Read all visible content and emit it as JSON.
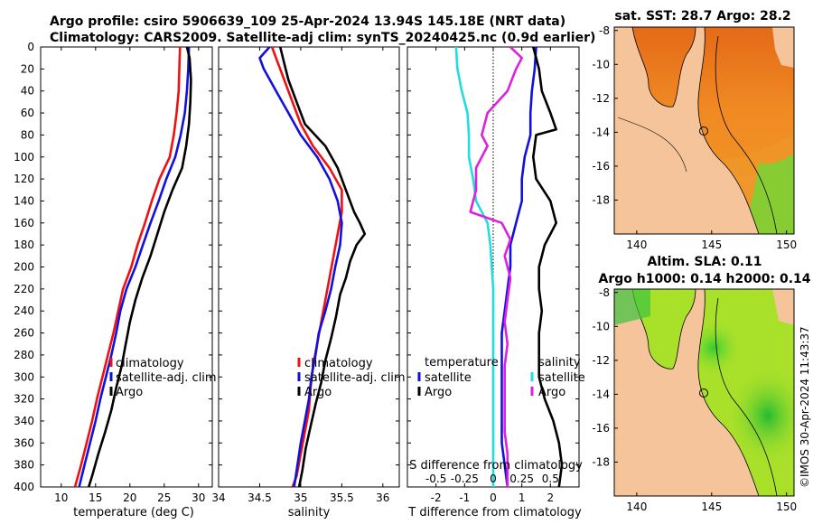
{
  "title": {
    "line1": "Argo profile: csiro 5906639_109 25-Apr-2024 13.94S 145.18E (NRT data)",
    "line2": "Climatology: CARS2009. Satellite-adj clim: synTS_20240425.nc (0.9d earlier)"
  },
  "credit": "©IMOS 30-Apr-2024 11:43:37",
  "colors": {
    "climatology": "#ee1111",
    "satellite": "#1111dd",
    "argo": "#000000",
    "cyan": "#22dddd",
    "magenta": "#dd22dd"
  },
  "chart_data": [
    {
      "id": "temperature",
      "type": "line",
      "xlabel": "temperature (deg C)",
      "xlim": [
        7,
        32
      ],
      "xticks": [
        10,
        15,
        20,
        25,
        30
      ],
      "ylim": [
        0,
        400
      ],
      "yticks": [
        0,
        20,
        40,
        60,
        80,
        100,
        120,
        140,
        160,
        180,
        200,
        220,
        240,
        260,
        280,
        300,
        320,
        340,
        360,
        380,
        400
      ],
      "legend": [
        "climatology",
        "satellite-adj. clim",
        "Argo"
      ],
      "series": [
        {
          "name": "climatology",
          "color_key": "climatology",
          "points": [
            [
              27.3,
              0
            ],
            [
              27.2,
              20
            ],
            [
              27.1,
              40
            ],
            [
              26.8,
              60
            ],
            [
              26.4,
              80
            ],
            [
              25.8,
              100
            ],
            [
              24.3,
              120
            ],
            [
              23.2,
              140
            ],
            [
              22.2,
              160
            ],
            [
              21.1,
              180
            ],
            [
              20.2,
              200
            ],
            [
              19.0,
              220
            ],
            [
              18.3,
              240
            ],
            [
              17.6,
              260
            ],
            [
              16.8,
              280
            ],
            [
              16.0,
              300
            ],
            [
              15.2,
              320
            ],
            [
              14.5,
              340
            ],
            [
              13.7,
              360
            ],
            [
              12.9,
              380
            ],
            [
              12.0,
              400
            ]
          ]
        },
        {
          "name": "satellite-adj. clim",
          "color_key": "satellite",
          "points": [
            [
              28.6,
              0
            ],
            [
              28.5,
              20
            ],
            [
              28.3,
              40
            ],
            [
              28.0,
              60
            ],
            [
              27.4,
              80
            ],
            [
              26.6,
              100
            ],
            [
              25.3,
              120
            ],
            [
              24.2,
              140
            ],
            [
              23.0,
              160
            ],
            [
              21.9,
              180
            ],
            [
              20.8,
              200
            ],
            [
              19.5,
              220
            ],
            [
              18.6,
              240
            ],
            [
              18.0,
              260
            ],
            [
              17.3,
              280
            ],
            [
              16.5,
              300
            ],
            [
              15.7,
              320
            ],
            [
              15.0,
              340
            ],
            [
              14.2,
              360
            ],
            [
              13.4,
              380
            ],
            [
              12.6,
              400
            ]
          ]
        },
        {
          "name": "Argo",
          "color_key": "argo",
          "points": [
            [
              28.3,
              0
            ],
            [
              28.7,
              10
            ],
            [
              28.9,
              30
            ],
            [
              28.8,
              50
            ],
            [
              28.6,
              70
            ],
            [
              28.2,
              90
            ],
            [
              27.6,
              110
            ],
            [
              26.2,
              130
            ],
            [
              25.0,
              150
            ],
            [
              24.0,
              170
            ],
            [
              23.0,
              190
            ],
            [
              21.8,
              210
            ],
            [
              20.8,
              230
            ],
            [
              20.0,
              250
            ],
            [
              19.4,
              270
            ],
            [
              18.8,
              290
            ],
            [
              18.0,
              310
            ],
            [
              17.3,
              330
            ],
            [
              16.4,
              350
            ],
            [
              15.4,
              370
            ],
            [
              14.5,
              390
            ],
            [
              14.0,
              400
            ]
          ]
        }
      ]
    },
    {
      "id": "salinity",
      "type": "line",
      "xlabel": "salinity",
      "xlim": [
        34,
        36.2
      ],
      "xticks": [
        34,
        34.5,
        35,
        35.5,
        36
      ],
      "ylim": [
        0,
        400
      ],
      "legend": [
        "climatology",
        "satellite-adj. clim",
        "Argo"
      ],
      "series": [
        {
          "name": "climatology",
          "color_key": "climatology",
          "points": [
            [
              34.65,
              0
            ],
            [
              34.7,
              10
            ],
            [
              34.8,
              30
            ],
            [
              34.9,
              50
            ],
            [
              35.0,
              70
            ],
            [
              35.15,
              90
            ],
            [
              35.35,
              110
            ],
            [
              35.5,
              130
            ],
            [
              35.5,
              150
            ],
            [
              35.45,
              170
            ],
            [
              35.4,
              190
            ],
            [
              35.35,
              210
            ],
            [
              35.3,
              230
            ],
            [
              35.25,
              250
            ],
            [
              35.2,
              270
            ],
            [
              35.15,
              290
            ],
            [
              35.12,
              310
            ],
            [
              35.1,
              330
            ],
            [
              35.05,
              350
            ],
            [
              35.0,
              370
            ],
            [
              34.95,
              390
            ],
            [
              34.9,
              400
            ]
          ]
        },
        {
          "name": "satellite-adj. clim",
          "color_key": "satellite",
          "points": [
            [
              34.62,
              0
            ],
            [
              34.5,
              10
            ],
            [
              34.55,
              20
            ],
            [
              34.7,
              40
            ],
            [
              34.85,
              60
            ],
            [
              35.0,
              80
            ],
            [
              35.2,
              100
            ],
            [
              35.35,
              120
            ],
            [
              35.45,
              140
            ],
            [
              35.5,
              160
            ],
            [
              35.48,
              180
            ],
            [
              35.42,
              200
            ],
            [
              35.37,
              220
            ],
            [
              35.3,
              240
            ],
            [
              35.22,
              260
            ],
            [
              35.18,
              280
            ],
            [
              35.13,
              300
            ],
            [
              35.1,
              320
            ],
            [
              35.05,
              340
            ],
            [
              35.0,
              360
            ],
            [
              34.96,
              380
            ],
            [
              34.92,
              400
            ]
          ]
        },
        {
          "name": "Argo",
          "color_key": "argo",
          "points": [
            [
              34.75,
              0
            ],
            [
              34.8,
              15
            ],
            [
              34.85,
              30
            ],
            [
              34.95,
              50
            ],
            [
              35.05,
              70
            ],
            [
              35.3,
              90
            ],
            [
              35.45,
              110
            ],
            [
              35.55,
              130
            ],
            [
              35.65,
              150
            ],
            [
              35.72,
              160
            ],
            [
              35.78,
              170
            ],
            [
              35.68,
              180
            ],
            [
              35.6,
              195
            ],
            [
              35.55,
              210
            ],
            [
              35.48,
              225
            ],
            [
              35.43,
              245
            ],
            [
              35.37,
              265
            ],
            [
              35.3,
              285
            ],
            [
              35.25,
              305
            ],
            [
              35.18,
              325
            ],
            [
              35.12,
              345
            ],
            [
              35.06,
              365
            ],
            [
              35.02,
              385
            ],
            [
              34.98,
              400
            ]
          ]
        }
      ]
    },
    {
      "id": "difference",
      "type": "line",
      "xlabel": "T difference from climatology",
      "xlim": [
        -3,
        3
      ],
      "xticks": [
        -2,
        -1,
        0,
        1,
        2
      ],
      "top_label": "S difference from climatology",
      "top_ticks": [
        "-0.5",
        "-0.25",
        "0",
        "0.25",
        "0.5"
      ],
      "ylim": [
        0,
        400
      ],
      "legend_left_heading": "temperature",
      "legend_left": [
        "satellite",
        "Argo"
      ],
      "legend_right_heading": "salinity",
      "legend_right": [
        "satellite",
        "Argo"
      ],
      "series": [
        {
          "name": "temperature satellite",
          "color_key": "satellite",
          "points": [
            [
              1.5,
              0
            ],
            [
              1.45,
              20
            ],
            [
              1.35,
              40
            ],
            [
              1.3,
              60
            ],
            [
              1.3,
              80
            ],
            [
              1.1,
              100
            ],
            [
              1.0,
              120
            ],
            [
              1.0,
              140
            ],
            [
              0.8,
              160
            ],
            [
              0.6,
              180
            ],
            [
              0.6,
              200
            ],
            [
              0.5,
              220
            ],
            [
              0.4,
              240
            ],
            [
              0.3,
              260
            ],
            [
              0.3,
              280
            ],
            [
              0.3,
              300
            ],
            [
              0.3,
              320
            ],
            [
              0.3,
              340
            ],
            [
              0.3,
              360
            ],
            [
              0.4,
              380
            ],
            [
              0.5,
              400
            ]
          ]
        },
        {
          "name": "temperature Argo",
          "color_key": "argo",
          "points": [
            [
              1.4,
              0
            ],
            [
              1.6,
              20
            ],
            [
              1.7,
              40
            ],
            [
              2.0,
              60
            ],
            [
              2.2,
              75
            ],
            [
              1.5,
              80
            ],
            [
              1.4,
              100
            ],
            [
              1.5,
              120
            ],
            [
              2.0,
              140
            ],
            [
              2.2,
              160
            ],
            [
              1.8,
              180
            ],
            [
              1.6,
              200
            ],
            [
              1.6,
              220
            ],
            [
              1.7,
              240
            ],
            [
              1.6,
              260
            ],
            [
              1.6,
              280
            ],
            [
              1.6,
              300
            ],
            [
              1.8,
              320
            ],
            [
              2.1,
              340
            ],
            [
              2.3,
              360
            ],
            [
              2.4,
              380
            ],
            [
              2.3,
              400
            ]
          ]
        },
        {
          "name": "salinity satellite",
          "color_key": "cyan",
          "points": [
            [
              -1.3,
              0
            ],
            [
              -1.25,
              20
            ],
            [
              -1.1,
              40
            ],
            [
              -0.9,
              60
            ],
            [
              -0.85,
              80
            ],
            [
              -0.85,
              100
            ],
            [
              -0.7,
              120
            ],
            [
              -0.6,
              140
            ],
            [
              -0.2,
              160
            ],
            [
              -0.1,
              180
            ],
            [
              -0.05,
              200
            ],
            [
              0.0,
              220
            ],
            [
              0.0,
              240
            ],
            [
              0.0,
              260
            ],
            [
              0.0,
              280
            ],
            [
              0.0,
              300
            ],
            [
              0.0,
              320
            ],
            [
              0.0,
              340
            ],
            [
              0.0,
              360
            ],
            [
              0.0,
              380
            ],
            [
              0.0,
              400
            ]
          ]
        },
        {
          "name": "salinity Argo",
          "color_key": "magenta",
          "points": [
            [
              0.6,
              0
            ],
            [
              1.0,
              10
            ],
            [
              0.8,
              20
            ],
            [
              0.5,
              40
            ],
            [
              -0.2,
              60
            ],
            [
              -0.4,
              80
            ],
            [
              -0.2,
              90
            ],
            [
              -0.6,
              110
            ],
            [
              -0.6,
              130
            ],
            [
              -0.8,
              150
            ],
            [
              0.3,
              160
            ],
            [
              0.6,
              175
            ],
            [
              0.4,
              190
            ],
            [
              0.6,
              210
            ],
            [
              0.5,
              230
            ],
            [
              0.4,
              250
            ],
            [
              0.5,
              270
            ],
            [
              0.4,
              290
            ],
            [
              0.4,
              310
            ],
            [
              0.4,
              330
            ],
            [
              0.4,
              350
            ],
            [
              0.5,
              370
            ],
            [
              0.5,
              390
            ],
            [
              0.5,
              400
            ]
          ]
        }
      ]
    }
  ],
  "maps": [
    {
      "id": "sst-map",
      "title": "sat. SST: 28.7 Argo: 28.2",
      "xticks": [
        140,
        145,
        150
      ],
      "yticks": [
        -8,
        -10,
        -12,
        -14,
        -16,
        -18
      ],
      "lon": [
        138.5,
        150.5
      ],
      "lat": [
        -20,
        -7.8
      ]
    },
    {
      "id": "sla-map",
      "title_line1": "Altim. SLA: 0.11",
      "title_line2": "Argo h1000: 0.14 h2000: 0.14",
      "xticks": [
        140,
        145,
        150
      ],
      "yticks": [
        -8,
        -10,
        -12,
        -14,
        -16,
        -18
      ],
      "lon": [
        138.5,
        150.5
      ],
      "lat": [
        -20,
        -7.8
      ]
    }
  ]
}
